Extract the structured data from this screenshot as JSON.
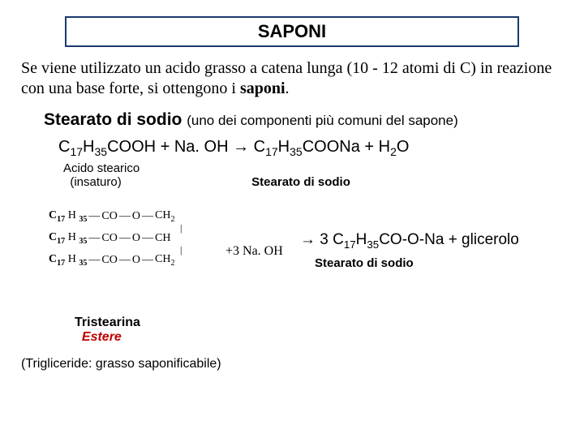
{
  "title": "SAPONI",
  "intro_pre": "Se viene utilizzato un acido grasso a catena lunga (10 - 12 atomi di C) in reazione con una base forte, si ottengono i ",
  "intro_bold": "saponi",
  "intro_post": ".",
  "subtitle_main": "Stearato di sodio ",
  "subtitle_note": "(uno dei componenti più comuni del sapone)",
  "eq": {
    "lhs1": "C",
    "lhs1_sub": "17",
    "lhs2": "H",
    "lhs2_sub": "35",
    "lhs3": "COOH + Na. OH ",
    "arrow": "→",
    "rhs1": " C",
    "rhs1_sub": "17",
    "rhs2": "H",
    "rhs2_sub": "35",
    "rhs3": "COONa + H",
    "rhs3_sub": "2",
    "rhs4": "O"
  },
  "label_left_1": "Acido stearico",
  "label_left_2": "(insaturo)",
  "label_right": "Stearato di sodio",
  "tri": {
    "c": "C",
    "c_sub": "17",
    "h": " H ",
    "h_sub": "35",
    "co": " CO ",
    "o": " O ",
    "ch2": " CH",
    "ch2_sub": "2",
    "ch": " CH"
  },
  "plus3naoh": "+3 Na. OH",
  "result_arrow": "→",
  "result_eq_pre": " 3 C",
  "result_eq_sub1": "17",
  "result_eq_mid": "H",
  "result_eq_sub2": "35",
  "result_eq_post": "CO-O-Na + glicerolo",
  "result_label": "Stearato di sodio",
  "tristearina": "Tristearina",
  "estere": "Estere",
  "footnote": "(Trigliceride: grasso saponificabile)",
  "colors": {
    "border": "#1a3a6e",
    "red": "#c00000",
    "text": "#000000",
    "bg": "#ffffff"
  }
}
